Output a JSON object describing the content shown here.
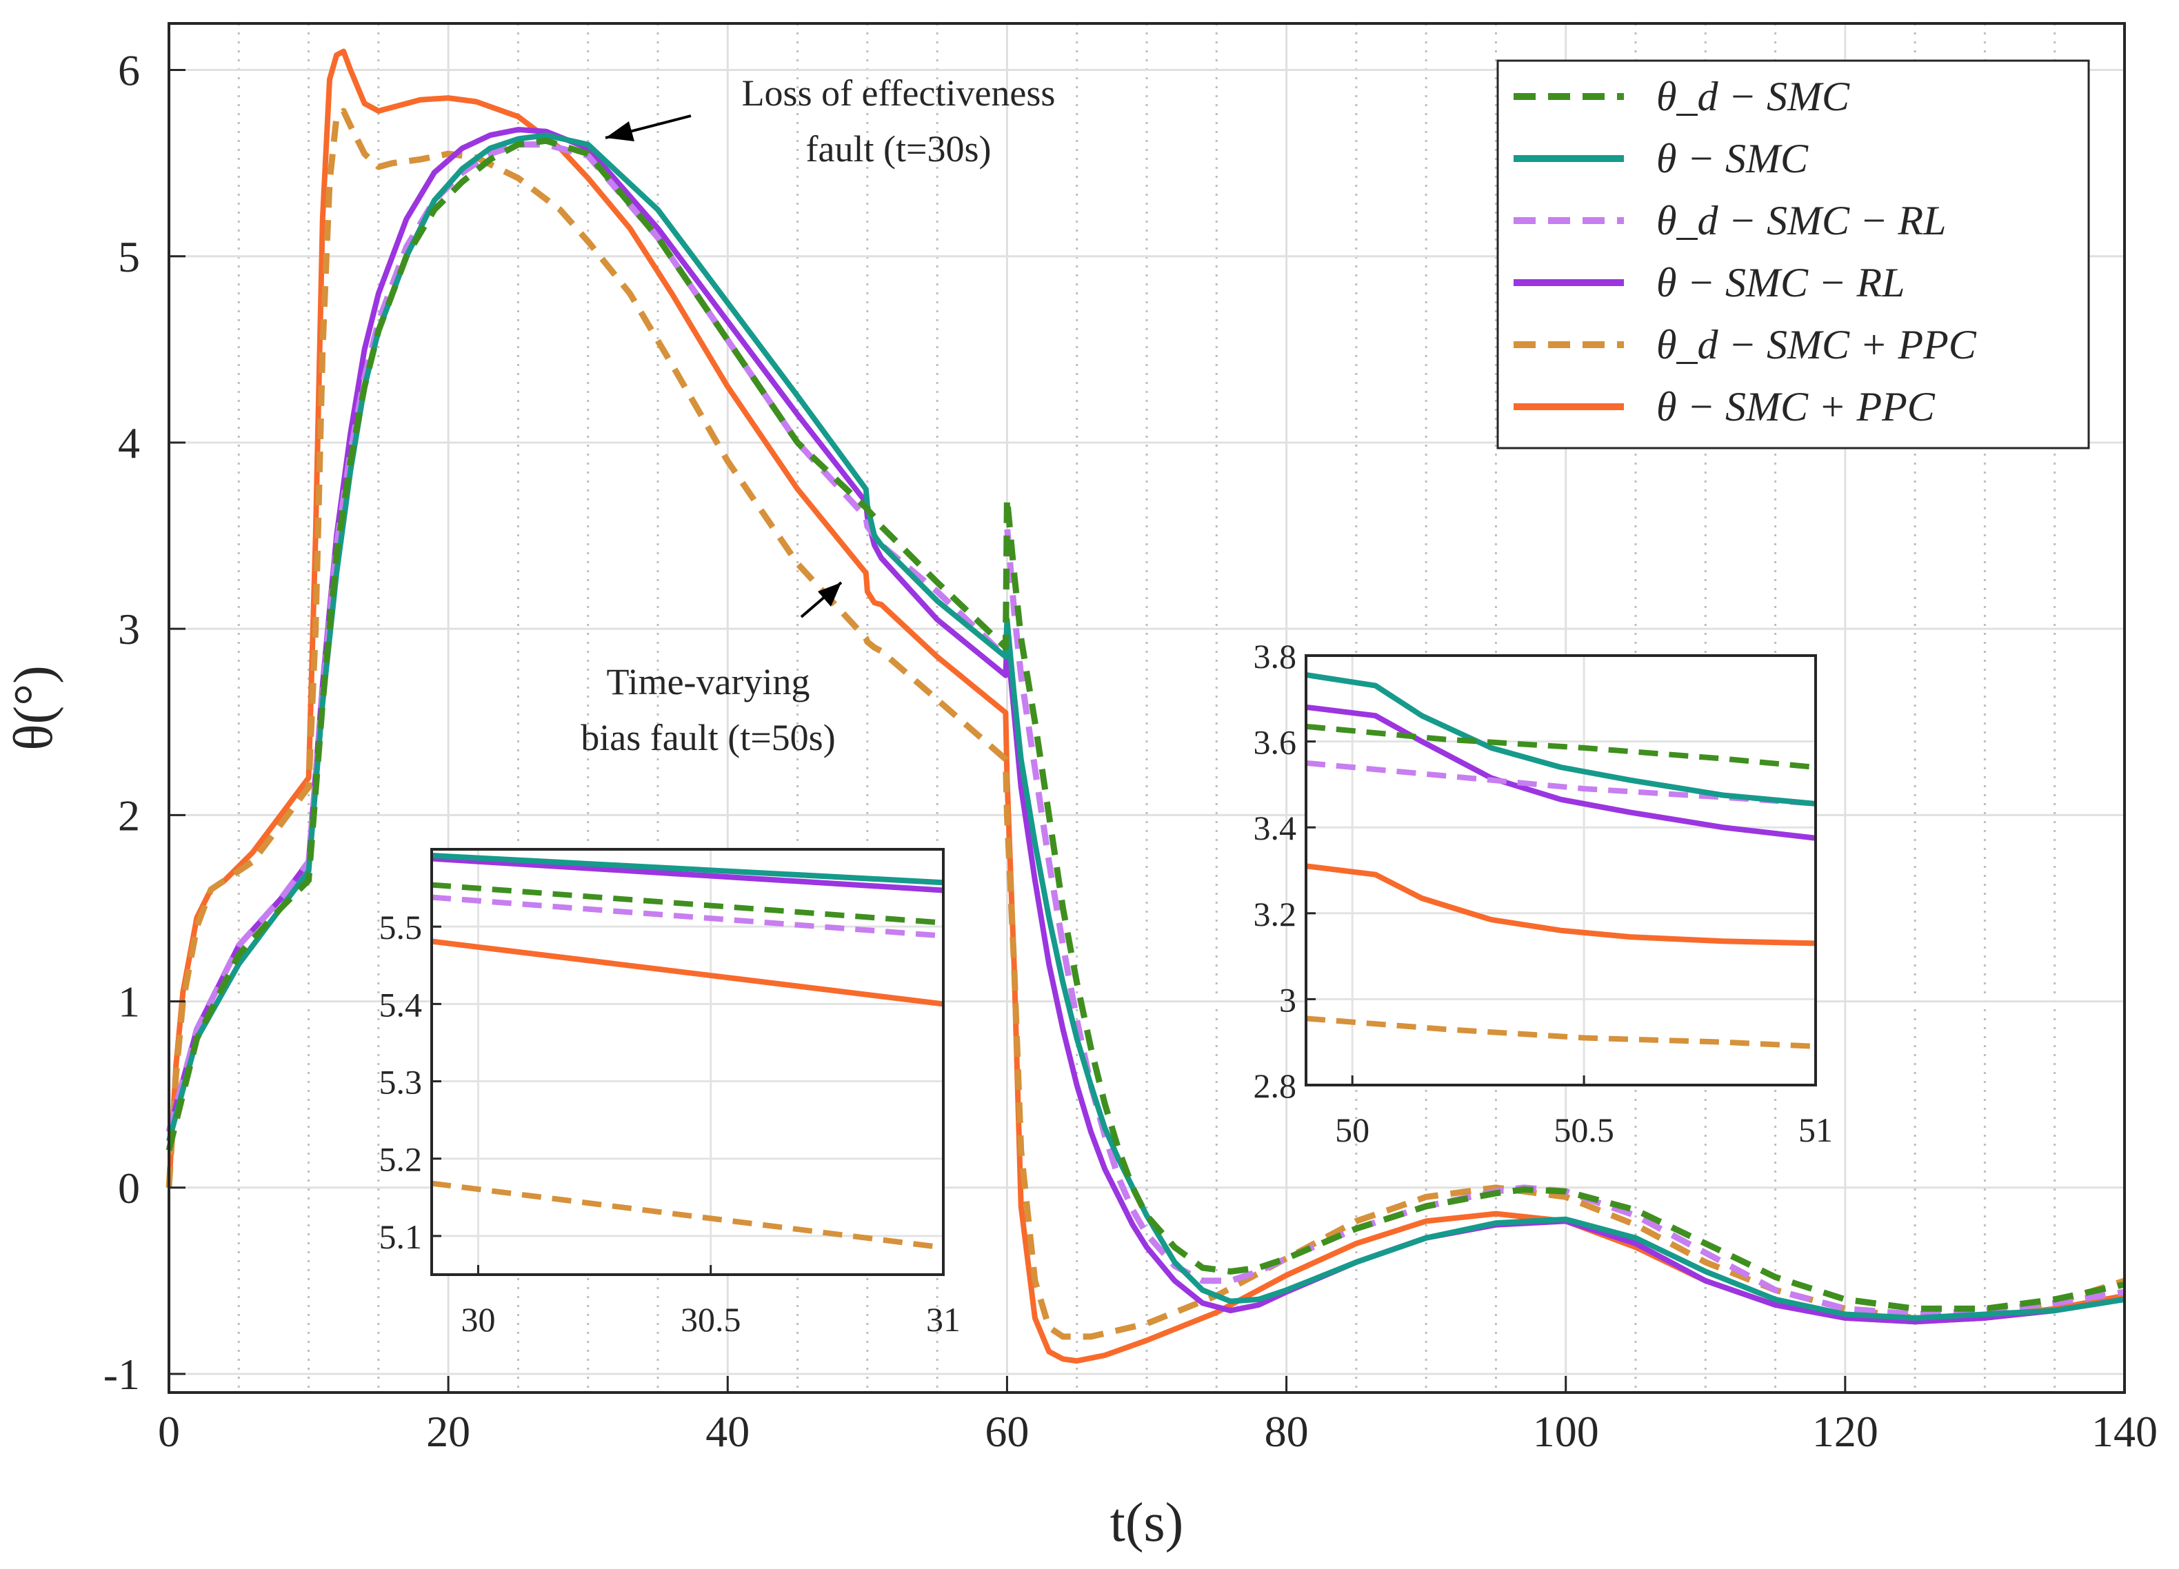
{
  "chart_data": {
    "type": "line",
    "xlabel": "t(s)",
    "ylabel": "θ(°)",
    "xlim": [
      0,
      140
    ],
    "ylim": [
      -1.1,
      6.25
    ],
    "xticks": [
      0,
      20,
      40,
      60,
      80,
      100,
      120,
      140
    ],
    "xtick_labels": [
      "0",
      "20",
      "40",
      "60",
      "80",
      "100",
      "120",
      "140"
    ],
    "yticks": [
      -1,
      0,
      1,
      2,
      3,
      4,
      5,
      6
    ],
    "ytick_labels": [
      "-1",
      "0",
      "1",
      "2",
      "3",
      "4",
      "5",
      "6"
    ],
    "grid": true,
    "legend_position": "top-right",
    "colors": {
      "smc_desired": "#3f8f1f",
      "smc": "#169a8b",
      "rl_desired": "#c77ef0",
      "rl": "#9b35e0",
      "ppc_desired": "#d6913a",
      "ppc": "#f86a2b"
    },
    "series": [
      {
        "name": "θd − SMC",
        "legend": "θ_d − SMC",
        "style": "dashed",
        "color": "#3f8f1f",
        "x": [
          0,
          2,
          5,
          8,
          10,
          11,
          12,
          13,
          14,
          15,
          17,
          19,
          21,
          23,
          25,
          27,
          30,
          35,
          40,
          45,
          49.9,
          50,
          50.5,
          51,
          55,
          59.9,
          60,
          60.5,
          61,
          62,
          63,
          64,
          65,
          66,
          67,
          68,
          69,
          70,
          72,
          74,
          76,
          78,
          80,
          85,
          90,
          95,
          97,
          100,
          105,
          110,
          115,
          120,
          125,
          130,
          135,
          140
        ],
        "y": [
          0.2,
          0.8,
          1.25,
          1.5,
          1.65,
          2.6,
          3.4,
          3.9,
          4.3,
          4.6,
          5.0,
          5.25,
          5.4,
          5.52,
          5.6,
          5.62,
          5.55,
          5.1,
          4.55,
          4.0,
          3.65,
          3.64,
          3.6,
          3.55,
          3.25,
          2.9,
          3.7,
          3.3,
          2.95,
          2.5,
          2.0,
          1.5,
          1.1,
          0.75,
          0.45,
          0.2,
          0.0,
          -0.15,
          -0.32,
          -0.43,
          -0.45,
          -0.43,
          -0.38,
          -0.22,
          -0.1,
          -0.03,
          -0.01,
          -0.02,
          -0.12,
          -0.3,
          -0.48,
          -0.6,
          -0.65,
          -0.65,
          -0.6,
          -0.52
        ]
      },
      {
        "name": "θ − SMC",
        "legend": "θ − SMC",
        "style": "solid",
        "color": "#169a8b",
        "x": [
          0,
          2,
          5,
          8,
          10,
          11,
          12,
          13,
          14,
          15,
          17,
          19,
          21,
          23,
          25,
          27,
          30,
          35,
          40,
          45,
          49.9,
          50,
          50.5,
          51,
          55,
          59.9,
          60,
          60.5,
          61,
          62,
          63,
          64,
          65,
          66,
          67,
          68,
          69,
          70,
          72,
          74,
          76,
          78,
          80,
          85,
          90,
          95,
          100,
          105,
          110,
          115,
          120,
          125,
          130,
          135,
          140
        ],
        "y": [
          0.25,
          0.8,
          1.2,
          1.5,
          1.7,
          2.6,
          3.3,
          3.85,
          4.3,
          4.6,
          5.0,
          5.3,
          5.47,
          5.58,
          5.63,
          5.65,
          5.6,
          5.25,
          4.75,
          4.25,
          3.75,
          3.66,
          3.5,
          3.45,
          3.15,
          2.85,
          3.05,
          2.65,
          2.3,
          1.85,
          1.45,
          1.1,
          0.8,
          0.55,
          0.32,
          0.15,
          0.0,
          -0.15,
          -0.4,
          -0.55,
          -0.61,
          -0.6,
          -0.55,
          -0.4,
          -0.27,
          -0.19,
          -0.17,
          -0.27,
          -0.45,
          -0.6,
          -0.68,
          -0.7,
          -0.68,
          -0.66,
          -0.6
        ]
      },
      {
        "name": "θd − SMC − RL",
        "legend": "θ_d − SMC − RL",
        "style": "dashed",
        "color": "#c77ef0",
        "x": [
          0,
          2,
          5,
          8,
          10,
          11,
          12,
          13,
          14,
          15,
          17,
          19,
          21,
          23,
          25,
          27,
          30,
          35,
          40,
          45,
          49.9,
          50,
          50.5,
          51,
          55,
          59.9,
          60,
          60.5,
          61,
          62,
          63,
          64,
          65,
          66,
          67,
          68,
          69,
          70,
          72,
          74,
          76,
          78,
          80,
          85,
          90,
          95,
          97,
          100,
          105,
          110,
          115,
          120,
          125,
          130,
          135,
          140
        ],
        "y": [
          0.3,
          0.85,
          1.3,
          1.55,
          1.75,
          2.65,
          3.45,
          3.95,
          4.35,
          4.65,
          5.05,
          5.3,
          5.45,
          5.55,
          5.6,
          5.6,
          5.54,
          5.1,
          4.55,
          4.0,
          3.6,
          3.55,
          3.5,
          3.45,
          3.2,
          2.85,
          3.55,
          3.1,
          2.75,
          2.25,
          1.75,
          1.3,
          0.9,
          0.55,
          0.28,
          0.05,
          -0.12,
          -0.25,
          -0.42,
          -0.5,
          -0.5,
          -0.45,
          -0.38,
          -0.22,
          -0.1,
          -0.02,
          0.0,
          -0.02,
          -0.15,
          -0.35,
          -0.55,
          -0.65,
          -0.68,
          -0.66,
          -0.62,
          -0.56
        ]
      },
      {
        "name": "θ − SMC − RL",
        "legend": "θ − SMC − RL",
        "style": "solid",
        "color": "#9b35e0",
        "x": [
          0,
          2,
          5,
          8,
          10,
          11,
          12,
          13,
          14,
          15,
          17,
          19,
          21,
          23,
          25,
          27,
          30,
          35,
          40,
          45,
          49.9,
          50,
          50.5,
          51,
          55,
          59.9,
          60,
          60.5,
          61,
          62,
          63,
          64,
          65,
          66,
          67,
          68,
          69,
          70,
          72,
          74,
          76,
          78,
          80,
          85,
          90,
          95,
          100,
          105,
          110,
          115,
          120,
          125,
          130,
          135,
          140
        ],
        "y": [
          0.3,
          0.85,
          1.3,
          1.55,
          1.75,
          2.7,
          3.5,
          4.05,
          4.5,
          4.8,
          5.2,
          5.45,
          5.58,
          5.65,
          5.68,
          5.67,
          5.58,
          5.15,
          4.65,
          4.15,
          3.68,
          3.6,
          3.45,
          3.38,
          3.05,
          2.75,
          2.95,
          2.55,
          2.15,
          1.65,
          1.2,
          0.85,
          0.55,
          0.3,
          0.1,
          -0.05,
          -0.2,
          -0.32,
          -0.5,
          -0.62,
          -0.66,
          -0.63,
          -0.56,
          -0.4,
          -0.27,
          -0.2,
          -0.18,
          -0.3,
          -0.5,
          -0.63,
          -0.7,
          -0.72,
          -0.7,
          -0.66,
          -0.6
        ]
      },
      {
        "name": "θd − SMC + PPC",
        "legend": "θ_d − SMC + PPC",
        "style": "dashed",
        "color": "#d6913a",
        "x": [
          0,
          0.5,
          1,
          2,
          3,
          4,
          6,
          8,
          10,
          10.5,
          11,
          11.5,
          12,
          12.5,
          13,
          14,
          15,
          16,
          18,
          20,
          22,
          25,
          28,
          30,
          33,
          36,
          40,
          45,
          49.9,
          50,
          50.5,
          51,
          55,
          59.9,
          60,
          60.5,
          61,
          62,
          63,
          64,
          66,
          70,
          75,
          80,
          85,
          90,
          95,
          100,
          105,
          110,
          115,
          120,
          125,
          130,
          135,
          140
        ],
        "y": [
          0,
          0.6,
          1.0,
          1.4,
          1.6,
          1.65,
          1.75,
          1.95,
          2.15,
          3.0,
          4.5,
          5.4,
          5.75,
          5.78,
          5.7,
          5.55,
          5.48,
          5.5,
          5.52,
          5.55,
          5.53,
          5.42,
          5.25,
          5.08,
          4.8,
          4.42,
          3.9,
          3.35,
          2.95,
          2.93,
          2.9,
          2.88,
          2.62,
          2.3,
          2.0,
          1.2,
          0.2,
          -0.5,
          -0.75,
          -0.8,
          -0.8,
          -0.73,
          -0.58,
          -0.38,
          -0.18,
          -0.05,
          0.0,
          -0.05,
          -0.2,
          -0.4,
          -0.55,
          -0.65,
          -0.7,
          -0.7,
          -0.62,
          -0.5
        ]
      },
      {
        "name": "θ − SMC + PPC",
        "legend": "θ − SMC + PPC",
        "style": "solid",
        "color": "#f86a2b",
        "x": [
          0,
          0.5,
          1,
          2,
          3,
          4,
          6,
          8,
          10,
          10.5,
          11,
          11.5,
          12,
          12.5,
          13,
          14,
          15,
          16,
          18,
          20,
          22,
          25,
          28,
          30,
          33,
          36,
          40,
          45,
          49.9,
          50,
          50.5,
          51,
          55,
          59.9,
          60,
          60.5,
          61,
          62,
          63,
          64,
          65,
          67,
          70,
          75,
          80,
          85,
          90,
          95,
          100,
          105,
          110,
          115,
          120,
          125,
          130,
          135,
          140
        ],
        "y": [
          0,
          0.65,
          1.05,
          1.45,
          1.6,
          1.65,
          1.8,
          2.0,
          2.2,
          3.5,
          5.2,
          5.95,
          6.08,
          6.1,
          6.0,
          5.82,
          5.78,
          5.8,
          5.84,
          5.85,
          5.83,
          5.75,
          5.58,
          5.42,
          5.15,
          4.8,
          4.3,
          3.75,
          3.3,
          3.2,
          3.14,
          3.13,
          2.85,
          2.55,
          2.2,
          1.2,
          -0.1,
          -0.7,
          -0.88,
          -0.92,
          -0.93,
          -0.9,
          -0.82,
          -0.67,
          -0.47,
          -0.3,
          -0.18,
          -0.14,
          -0.18,
          -0.32,
          -0.5,
          -0.63,
          -0.7,
          -0.72,
          -0.7,
          -0.65,
          -0.58
        ]
      }
    ],
    "insets": [
      {
        "name": "zoom-30s",
        "xlim": [
          29.9,
          31
        ],
        "ylim": [
          5.05,
          5.6
        ],
        "xticks": [
          30,
          30.5,
          31
        ],
        "xtick_labels": [
          "30",
          "30.5",
          "31"
        ],
        "yticks": [
          5.1,
          5.2,
          5.3,
          5.4,
          5.5
        ],
        "ytick_labels": [
          "5.1",
          "5.2",
          "5.3",
          "5.4",
          "5.5"
        ],
        "series": [
          {
            "ref": 0,
            "x": [
              29.9,
              31
            ],
            "y": [
              5.554,
              5.505
            ]
          },
          {
            "ref": 1,
            "x": [
              29.9,
              31
            ],
            "y": [
              5.592,
              5.557
            ]
          },
          {
            "ref": 2,
            "x": [
              29.9,
              31
            ],
            "y": [
              5.538,
              5.488
            ]
          },
          {
            "ref": 3,
            "x": [
              29.9,
              31
            ],
            "y": [
              5.588,
              5.547
            ]
          },
          {
            "ref": 4,
            "x": [
              29.9,
              31
            ],
            "y": [
              5.168,
              5.085
            ]
          },
          {
            "ref": 5,
            "x": [
              29.9,
              31
            ],
            "y": [
              5.481,
              5.4
            ]
          }
        ]
      },
      {
        "name": "zoom-50s",
        "xlim": [
          49.9,
          51
        ],
        "ylim": [
          2.8,
          3.8
        ],
        "xticks": [
          50,
          50.5,
          51
        ],
        "xtick_labels": [
          "50",
          "50.5",
          "51"
        ],
        "yticks": [
          2.8,
          3,
          3.2,
          3.4,
          3.6,
          3.8
        ],
        "ytick_labels": [
          "2.8",
          "3",
          "3.2",
          "3.4",
          "3.6",
          "3.8"
        ],
        "series": [
          {
            "ref": 0,
            "x": [
              49.9,
              50.2,
              50.5,
              50.8,
              51
            ],
            "y": [
              3.635,
              3.605,
              3.585,
              3.56,
              3.54
            ]
          },
          {
            "ref": 1,
            "x": [
              49.9,
              50.05,
              50.15,
              50.3,
              50.45,
              50.6,
              50.8,
              51
            ],
            "y": [
              3.755,
              3.73,
              3.66,
              3.585,
              3.54,
              3.51,
              3.475,
              3.455
            ]
          },
          {
            "ref": 2,
            "x": [
              49.9,
              50.2,
              50.5,
              50.8,
              51
            ],
            "y": [
              3.55,
              3.52,
              3.49,
              3.47,
              3.455
            ]
          },
          {
            "ref": 3,
            "x": [
              49.9,
              50.05,
              50.15,
              50.3,
              50.45,
              50.6,
              50.8,
              51
            ],
            "y": [
              3.68,
              3.66,
              3.6,
              3.515,
              3.465,
              3.435,
              3.4,
              3.375
            ]
          },
          {
            "ref": 4,
            "x": [
              49.9,
              50.2,
              50.5,
              50.8,
              51
            ],
            "y": [
              2.955,
              2.93,
              2.91,
              2.9,
              2.89
            ]
          },
          {
            "ref": 5,
            "x": [
              49.9,
              50.05,
              50.15,
              50.3,
              50.45,
              50.6,
              50.8,
              51
            ],
            "y": [
              3.31,
              3.29,
              3.235,
              3.185,
              3.16,
              3.145,
              3.135,
              3.13
            ]
          }
        ]
      }
    ],
    "annotations": [
      {
        "name": "loe-fault",
        "lines": [
          "Loss of effectiveness",
          "fault (t=30s)"
        ],
        "target": [
          32,
          5.6
        ]
      },
      {
        "name": "bias-fault",
        "lines": [
          "Time-varying",
          "bias fault (t=50s)"
        ],
        "target": [
          50,
          3.25
        ]
      }
    ]
  }
}
